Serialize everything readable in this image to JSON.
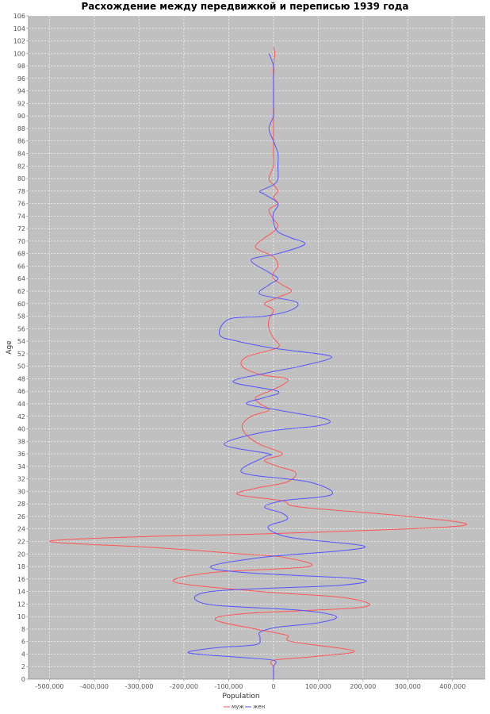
{
  "chart_data": {
    "type": "line",
    "title": "Расхождение между передвижкой и переписью 1939 года",
    "xlabel": "Population",
    "ylabel": "Age",
    "xlim": [
      -500000,
      450000
    ],
    "ylim": [
      0,
      106
    ],
    "x_ticks": [
      -500000,
      -400000,
      -300000,
      -200000,
      -100000,
      0,
      100000,
      200000,
      300000,
      400000
    ],
    "x_tick_labels": [
      "-500,000",
      "-400,000",
      "-300,000",
      "-200,000",
      "-100,000",
      "0",
      "100,000",
      "200,000",
      "300,000",
      "400,000"
    ],
    "y_ticks": [
      0,
      2,
      4,
      6,
      8,
      10,
      12,
      14,
      16,
      18,
      20,
      22,
      24,
      26,
      28,
      30,
      32,
      34,
      36,
      38,
      40,
      42,
      44,
      46,
      48,
      50,
      52,
      54,
      56,
      58,
      60,
      62,
      64,
      66,
      68,
      70,
      72,
      74,
      76,
      78,
      80,
      82,
      84,
      86,
      88,
      90,
      92,
      94,
      96,
      98,
      100,
      102,
      104,
      106
    ],
    "y_tick_labels": [
      "0",
      "2",
      "4",
      "6",
      "8",
      "10",
      "12",
      "14",
      "16",
      "18",
      "20",
      "22",
      "24",
      "26",
      "28",
      "30",
      "32",
      "34",
      "36",
      "38",
      "40",
      "42",
      "44",
      "46",
      "48",
      "50",
      "52",
      "54",
      "56",
      "58",
      "60",
      "62",
      "64",
      "66",
      "68",
      "70",
      "72",
      "74",
      "76",
      "78",
      "80",
      "82",
      "84",
      "86",
      "88",
      "90",
      "92",
      "94",
      "96",
      "98",
      "100",
      "102",
      "104",
      "106"
    ],
    "grid": true,
    "background": "#c0c0c0",
    "legend_position": "bottom-center",
    "series": [
      {
        "name": "муж",
        "color": "#ff5555",
        "points": [
          [
            0,
            0
          ],
          [
            0,
            1
          ],
          [
            0,
            2
          ],
          [
            0,
            3
          ],
          [
            90000,
            3.6
          ],
          [
            180000,
            4.5
          ],
          [
            40000,
            6
          ],
          [
            30000,
            7
          ],
          [
            -40000,
            8
          ],
          [
            -130000,
            9.5
          ],
          [
            -60000,
            10.5
          ],
          [
            200000,
            11.5
          ],
          [
            160000,
            13
          ],
          [
            -30000,
            14
          ],
          [
            -220000,
            15.5
          ],
          [
            -140000,
            17
          ],
          [
            80000,
            18
          ],
          [
            20000,
            19.5
          ],
          [
            -70000,
            20
          ],
          [
            -260000,
            21
          ],
          [
            -500000,
            22
          ],
          [
            -280000,
            22.8
          ],
          [
            20000,
            23.3
          ],
          [
            420000,
            24.5
          ],
          [
            300000,
            26
          ],
          [
            60000,
            27.5
          ],
          [
            20000,
            28.5
          ],
          [
            -80000,
            29.5
          ],
          [
            -40000,
            30.5
          ],
          [
            30000,
            31.5
          ],
          [
            50000,
            33
          ],
          [
            10000,
            34
          ],
          [
            -20000,
            35
          ],
          [
            20000,
            36
          ],
          [
            -30000,
            37.5
          ],
          [
            -60000,
            39
          ],
          [
            -70000,
            40.5
          ],
          [
            -50000,
            42
          ],
          [
            -10000,
            43
          ],
          [
            -30000,
            44
          ],
          [
            -40000,
            45
          ],
          [
            -10000,
            46
          ],
          [
            20000,
            47
          ],
          [
            30000,
            48
          ],
          [
            -30000,
            48.7
          ],
          [
            -70000,
            50
          ],
          [
            -60000,
            51.5
          ],
          [
            10000,
            53
          ],
          [
            0,
            54.5
          ],
          [
            -10000,
            56
          ],
          [
            -10000,
            57.5
          ],
          [
            0,
            59
          ],
          [
            -20000,
            60
          ],
          [
            10000,
            61
          ],
          [
            40000,
            62
          ],
          [
            20000,
            63
          ],
          [
            0,
            64
          ],
          [
            0,
            65
          ],
          [
            10000,
            66
          ],
          [
            0,
            67.5
          ],
          [
            -40000,
            69
          ],
          [
            -20000,
            70.5
          ],
          [
            0,
            71.5
          ],
          [
            10000,
            72.5
          ],
          [
            0,
            73.5
          ],
          [
            -10000,
            75
          ],
          [
            10000,
            76
          ],
          [
            0,
            77
          ],
          [
            10000,
            78
          ],
          [
            0,
            79
          ],
          [
            -10000,
            80
          ],
          [
            0,
            82
          ],
          [
            0,
            84
          ],
          [
            0,
            86
          ],
          [
            0,
            88
          ],
          [
            0,
            90
          ],
          [
            0,
            92
          ],
          [
            0,
            94
          ],
          [
            0,
            96
          ],
          [
            0,
            98
          ],
          [
            3000,
            100
          ],
          [
            0,
            101
          ]
        ]
      },
      {
        "name": "жен",
        "color": "#5555ff",
        "points": [
          [
            0,
            0
          ],
          [
            0,
            1
          ],
          [
            0,
            2
          ],
          [
            0,
            3
          ],
          [
            -80000,
            3.5
          ],
          [
            -190000,
            4.2
          ],
          [
            -130000,
            5
          ],
          [
            -40000,
            5.5
          ],
          [
            -30000,
            6.5
          ],
          [
            -30000,
            7.5
          ],
          [
            10000,
            8.3
          ],
          [
            100000,
            9
          ],
          [
            140000,
            10
          ],
          [
            60000,
            11
          ],
          [
            -150000,
            12
          ],
          [
            -140000,
            14
          ],
          [
            150000,
            15
          ],
          [
            190000,
            16
          ],
          [
            -60000,
            17
          ],
          [
            -140000,
            18
          ],
          [
            -20000,
            19.5
          ],
          [
            150000,
            20.5
          ],
          [
            200000,
            21.3
          ],
          [
            50000,
            22.5
          ],
          [
            0,
            23.5
          ],
          [
            -10000,
            24.5
          ],
          [
            30000,
            25.5
          ],
          [
            20000,
            26.5
          ],
          [
            -20000,
            27.5
          ],
          [
            20000,
            28.5
          ],
          [
            130000,
            29.5
          ],
          [
            80000,
            31.5
          ],
          [
            -70000,
            33
          ],
          [
            -20000,
            35.5
          ],
          [
            -10000,
            36
          ],
          [
            -110000,
            37.5
          ],
          [
            -20000,
            39.5
          ],
          [
            100000,
            40.5
          ],
          [
            120000,
            41.5
          ],
          [
            10000,
            43
          ],
          [
            -60000,
            44
          ],
          [
            -20000,
            45
          ],
          [
            10000,
            46
          ],
          [
            -90000,
            47.5
          ],
          [
            -10000,
            49
          ],
          [
            60000,
            50
          ],
          [
            130000,
            51.5
          ],
          [
            40000,
            52.5
          ],
          [
            -10000,
            53
          ],
          [
            -80000,
            54
          ],
          [
            -120000,
            55
          ],
          [
            -100000,
            57.5
          ],
          [
            -20000,
            58
          ],
          [
            40000,
            59
          ],
          [
            50000,
            60.3
          ],
          [
            -30000,
            61.5
          ],
          [
            -10000,
            63
          ],
          [
            10000,
            64
          ],
          [
            -10000,
            65
          ],
          [
            -50000,
            67
          ],
          [
            10000,
            68
          ],
          [
            70000,
            69.5
          ],
          [
            40000,
            70.5
          ],
          [
            10000,
            71.5
          ],
          [
            0,
            73
          ],
          [
            0,
            74.5
          ],
          [
            10000,
            76
          ],
          [
            -20000,
            77.5
          ],
          [
            -30000,
            78
          ],
          [
            0,
            79
          ],
          [
            10000,
            80
          ],
          [
            10000,
            82
          ],
          [
            10000,
            84
          ],
          [
            0,
            86
          ],
          [
            -10000,
            88
          ],
          [
            0,
            90
          ],
          [
            0,
            92
          ],
          [
            0,
            94
          ],
          [
            0,
            96
          ],
          [
            0,
            98
          ],
          [
            -10000,
            100
          ]
        ]
      }
    ]
  }
}
